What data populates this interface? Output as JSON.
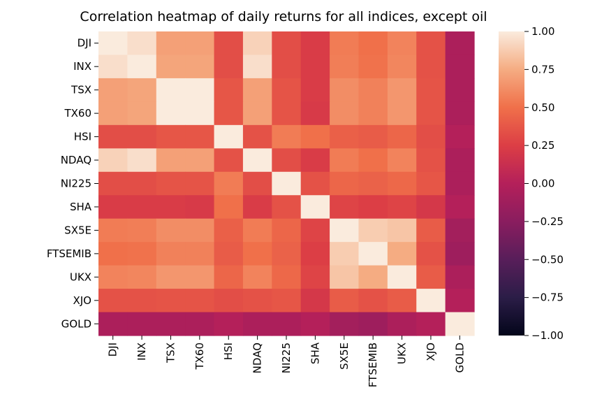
{
  "chart_data": {
    "type": "heatmap",
    "title": "Correlation heatmap of daily returns for all indices, except oil",
    "xlabel": "",
    "ylabel": "",
    "labels": [
      "DJI",
      "INX",
      "TSX",
      "TX60",
      "HSI",
      "NDAQ",
      "NI225",
      "SHA",
      "SX5E",
      "FTSEMIB",
      "UKX",
      "XJO",
      "GOLD"
    ],
    "matrix": [
      [
        1.0,
        0.95,
        0.7,
        0.7,
        0.33,
        0.9,
        0.33,
        0.23,
        0.55,
        0.5,
        0.58,
        0.35,
        -0.05
      ],
      [
        0.95,
        1.0,
        0.72,
        0.72,
        0.33,
        0.95,
        0.33,
        0.23,
        0.56,
        0.51,
        0.59,
        0.35,
        -0.05
      ],
      [
        0.7,
        0.72,
        1.0,
        1.0,
        0.37,
        0.7,
        0.36,
        0.23,
        0.62,
        0.57,
        0.66,
        0.36,
        -0.05
      ],
      [
        0.7,
        0.72,
        1.0,
        1.0,
        0.37,
        0.7,
        0.36,
        0.22,
        0.62,
        0.57,
        0.66,
        0.36,
        -0.05
      ],
      [
        0.33,
        0.33,
        0.37,
        0.37,
        1.0,
        0.35,
        0.55,
        0.5,
        0.42,
        0.4,
        0.45,
        0.33,
        0.0
      ],
      [
        0.9,
        0.95,
        0.7,
        0.7,
        0.35,
        1.0,
        0.33,
        0.23,
        0.55,
        0.5,
        0.58,
        0.35,
        -0.05
      ],
      [
        0.33,
        0.33,
        0.36,
        0.36,
        0.55,
        0.33,
        1.0,
        0.35,
        0.45,
        0.43,
        0.46,
        0.37,
        -0.05
      ],
      [
        0.23,
        0.23,
        0.23,
        0.22,
        0.5,
        0.23,
        0.35,
        1.0,
        0.28,
        0.25,
        0.28,
        0.2,
        0.0
      ],
      [
        0.55,
        0.56,
        0.62,
        0.62,
        0.42,
        0.55,
        0.45,
        0.28,
        1.0,
        0.88,
        0.85,
        0.4,
        -0.1
      ],
      [
        0.5,
        0.51,
        0.57,
        0.57,
        0.4,
        0.5,
        0.43,
        0.25,
        0.88,
        1.0,
        0.75,
        0.35,
        -0.13
      ],
      [
        0.58,
        0.59,
        0.66,
        0.66,
        0.45,
        0.58,
        0.46,
        0.28,
        0.85,
        0.75,
        1.0,
        0.4,
        -0.05
      ],
      [
        0.35,
        0.35,
        0.36,
        0.36,
        0.33,
        0.35,
        0.37,
        0.2,
        0.4,
        0.35,
        0.4,
        1.0,
        0.0
      ],
      [
        -0.05,
        -0.05,
        -0.05,
        -0.05,
        0.0,
        -0.05,
        -0.05,
        0.0,
        -0.1,
        -0.13,
        -0.05,
        0.0,
        1.0
      ]
    ],
    "colorbar": {
      "min": -1.0,
      "max": 1.0,
      "ticks": [
        "1.00",
        "0.75",
        "0.50",
        "0.25",
        "0.00",
        "−0.25",
        "−0.50",
        "−0.75",
        "−1.00"
      ],
      "tick_values": [
        1.0,
        0.75,
        0.5,
        0.25,
        0.0,
        -0.25,
        -0.5,
        -0.75,
        -1.0
      ]
    },
    "colormap": {
      "name": "rocket",
      "stops": [
        [
          -1.0,
          "#03051a"
        ],
        [
          -0.75,
          "#2b1d47"
        ],
        [
          -0.5,
          "#581e5a"
        ],
        [
          -0.25,
          "#8a1d5f"
        ],
        [
          0.0,
          "#b4205a"
        ],
        [
          0.25,
          "#dc3e45"
        ],
        [
          0.5,
          "#f0704a"
        ],
        [
          0.75,
          "#f5ac82"
        ],
        [
          1.0,
          "#faebdd"
        ]
      ]
    },
    "grid": false
  }
}
